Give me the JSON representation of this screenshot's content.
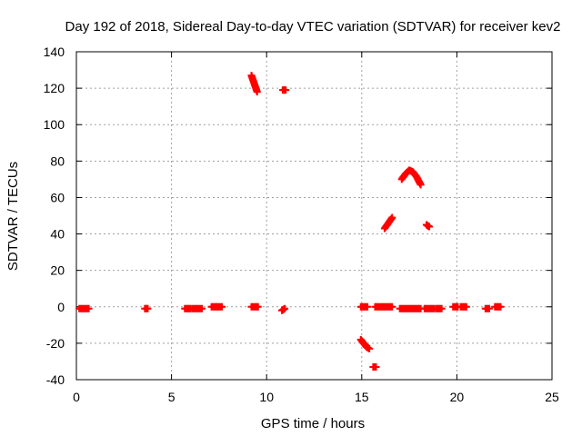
{
  "chart_data": {
    "type": "scatter",
    "title": "Day 192 of 2018, Sidereal Day-to-day VTEC variation (SDTVAR) for receiver kev2",
    "xlabel": "GPS time / hours",
    "ylabel": "SDTVAR / TECUs",
    "xlim": [
      0,
      25
    ],
    "ylim": [
      -40,
      140
    ],
    "xticks": [
      0,
      5,
      10,
      15,
      20,
      25
    ],
    "yticks": [
      -40,
      -20,
      0,
      20,
      40,
      60,
      80,
      100,
      120,
      140
    ],
    "grid": true,
    "legend": "none",
    "marker_color": "#ff0000",
    "segments": [
      {
        "x": [
          0.15,
          0.65
        ],
        "y": [
          -1,
          -1
        ]
      },
      {
        "x": [
          3.6,
          3.75
        ],
        "y": [
          -1,
          -1
        ]
      },
      {
        "x": [
          5.7,
          6.0
        ],
        "y": [
          -1,
          -1
        ]
      },
      {
        "x": [
          6.1,
          6.6
        ],
        "y": [
          -1,
          -1
        ]
      },
      {
        "x": [
          7.1,
          7.3
        ],
        "y": [
          0,
          0
        ]
      },
      {
        "x": [
          7.35,
          7.65
        ],
        "y": [
          0,
          0
        ]
      },
      {
        "x": [
          9.2,
          9.55
        ],
        "y": [
          0,
          0
        ]
      },
      {
        "x": [
          9.2,
          9.3,
          9.4,
          9.5
        ],
        "y": [
          127,
          124,
          121,
          118
        ]
      },
      {
        "x": [
          10.85,
          11.0
        ],
        "y": [
          119,
          119
        ]
      },
      {
        "x": [
          10.8,
          10.95
        ],
        "y": [
          -2,
          -1
        ]
      },
      {
        "x": [
          14.95,
          15.3
        ],
        "y": [
          0,
          0
        ]
      },
      {
        "x": [
          14.95,
          15.1,
          15.25,
          15.4
        ],
        "y": [
          -18,
          -20,
          -22,
          -23
        ]
      },
      {
        "x": [
          15.6,
          15.75
        ],
        "y": [
          -33,
          -33
        ]
      },
      {
        "x": [
          15.7,
          16.6
        ],
        "y": [
          0,
          0
        ]
      },
      {
        "x": [
          16.2,
          16.4,
          16.6
        ],
        "y": [
          43,
          46,
          49
        ]
      },
      {
        "x": [
          17.1,
          17.3,
          17.5,
          17.7,
          17.9,
          18.1
        ],
        "y": [
          70,
          73,
          75,
          74,
          71,
          67
        ]
      },
      {
        "x": [
          17.0,
          18.1
        ],
        "y": [
          -1,
          -1
        ]
      },
      {
        "x": [
          18.4,
          18.55
        ],
        "y": [
          45,
          44
        ]
      },
      {
        "x": [
          18.3,
          18.8
        ],
        "y": [
          -1,
          -1
        ]
      },
      {
        "x": [
          18.9,
          19.2
        ],
        "y": [
          -1,
          -1
        ]
      },
      {
        "x": [
          19.8,
          20.05
        ],
        "y": [
          0,
          0
        ]
      },
      {
        "x": [
          20.2,
          20.5
        ],
        "y": [
          0,
          0
        ]
      },
      {
        "x": [
          21.5,
          21.7
        ],
        "y": [
          -1,
          -1
        ]
      },
      {
        "x": [
          22.0,
          22.3
        ],
        "y": [
          0,
          0
        ]
      }
    ]
  }
}
